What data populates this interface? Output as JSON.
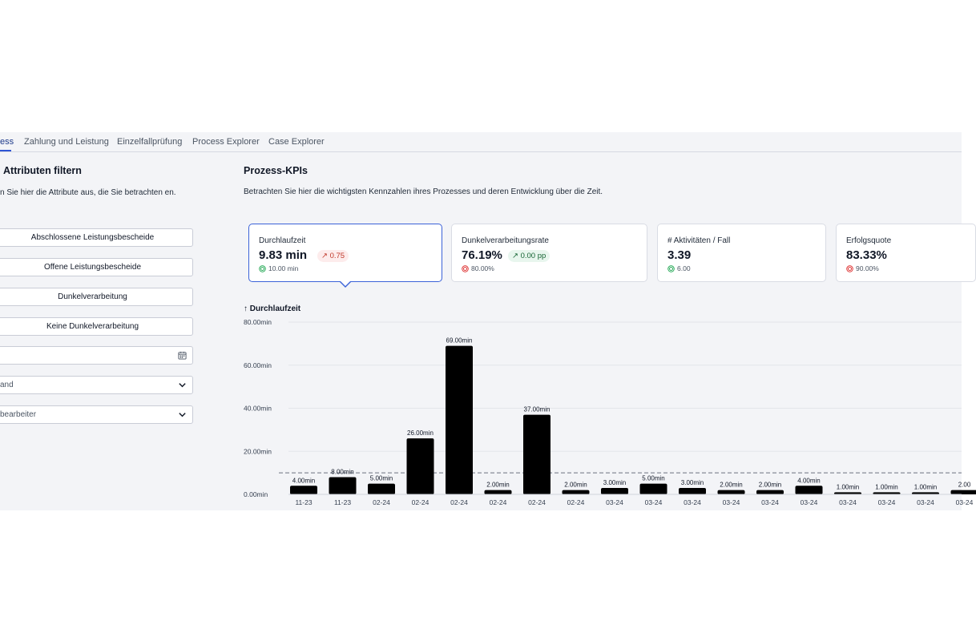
{
  "tabs": [
    {
      "label": "ess",
      "active": true
    },
    {
      "label": "Zahlung und Leistung",
      "active": false
    },
    {
      "label": "Einzelfallprüfung",
      "active": false
    },
    {
      "label": "Process Explorer",
      "active": false
    },
    {
      "label": "Case Explorer",
      "active": false
    }
  ],
  "filter": {
    "title": "Attributen filtern",
    "description": "n Sie hier die Attribute aus, die Sie betrachten en.",
    "buttons": [
      "Abschlossene Leistungsbescheide",
      "Offene Leistungsbescheide",
      "Dunkelverarbeitung",
      "Keine Dunkelverarbeitung"
    ],
    "date_value": "",
    "dropdown_1": "and",
    "dropdown_2": "bearbeiter"
  },
  "kpis": {
    "title": "Prozess-KPIs",
    "description": "Betrachten Sie hier die wichtigsten Kennzahlen ihres Prozesses und deren Entwicklung über die Zeit.",
    "cards": [
      {
        "label": "Durchlaufzeit",
        "value": "9.83 min",
        "delta": "↗ 0.75",
        "delta_type": "negative",
        "target": "10.00 min",
        "target_status": "ok",
        "active": true
      },
      {
        "label": "Dunkelverarbeitungsrate",
        "value": "76.19%",
        "delta": "↗ 0.00 pp",
        "delta_type": "positive",
        "target": "80.00%",
        "target_status": "miss",
        "active": false
      },
      {
        "label": "# Aktivitäten / Fall",
        "value": "3.39",
        "delta": "",
        "delta_type": "",
        "target": "6.00",
        "target_status": "ok",
        "active": false
      },
      {
        "label": "Erfolgsquote",
        "value": "83.33%",
        "delta": "",
        "delta_type": "",
        "target": "90.00%",
        "target_status": "miss",
        "active": false
      }
    ]
  },
  "colors": {
    "accent": "#3b62d8",
    "negative": "#c0392b",
    "positive": "#166534",
    "ok_icon": "#16a34a",
    "miss_icon": "#dc2626"
  },
  "chart_title": "↑ Durchlaufzeit",
  "chart_data": {
    "type": "bar",
    "title": "↑ Durchlaufzeit",
    "categories": [
      "11-23",
      "11-23",
      "02-24",
      "02-24",
      "02-24",
      "02-24",
      "02-24",
      "02-24",
      "03-24",
      "03-24",
      "03-24",
      "03-24",
      "03-24",
      "03-24",
      "03-24",
      "03-24",
      "03-24",
      "03-24"
    ],
    "values": [
      4,
      8,
      5,
      26,
      69,
      2,
      37,
      2,
      3,
      5,
      3,
      2,
      2,
      4,
      1,
      1,
      1,
      2
    ],
    "value_labels": [
      "4.00min",
      "8.00min",
      "5.00min",
      "26.00min",
      "69.00min",
      "2.00min",
      "37.00min",
      "2.00min",
      "3.00min",
      "5.00min",
      "3.00min",
      "2.00min",
      "2.00min",
      "4.00min",
      "1.00min",
      "1.00min",
      "1.00min",
      "2.00"
    ],
    "y_ticks": [
      {
        "value": 0,
        "label": "0.00min"
      },
      {
        "value": 20,
        "label": "20.00min"
      },
      {
        "value": 40,
        "label": "40.00min"
      },
      {
        "value": 60,
        "label": "60.00min"
      },
      {
        "value": 80,
        "label": "80.00min"
      }
    ],
    "ylim": [
      0,
      80
    ],
    "target_line": 10,
    "grid": true,
    "bar_color": "#000000"
  }
}
